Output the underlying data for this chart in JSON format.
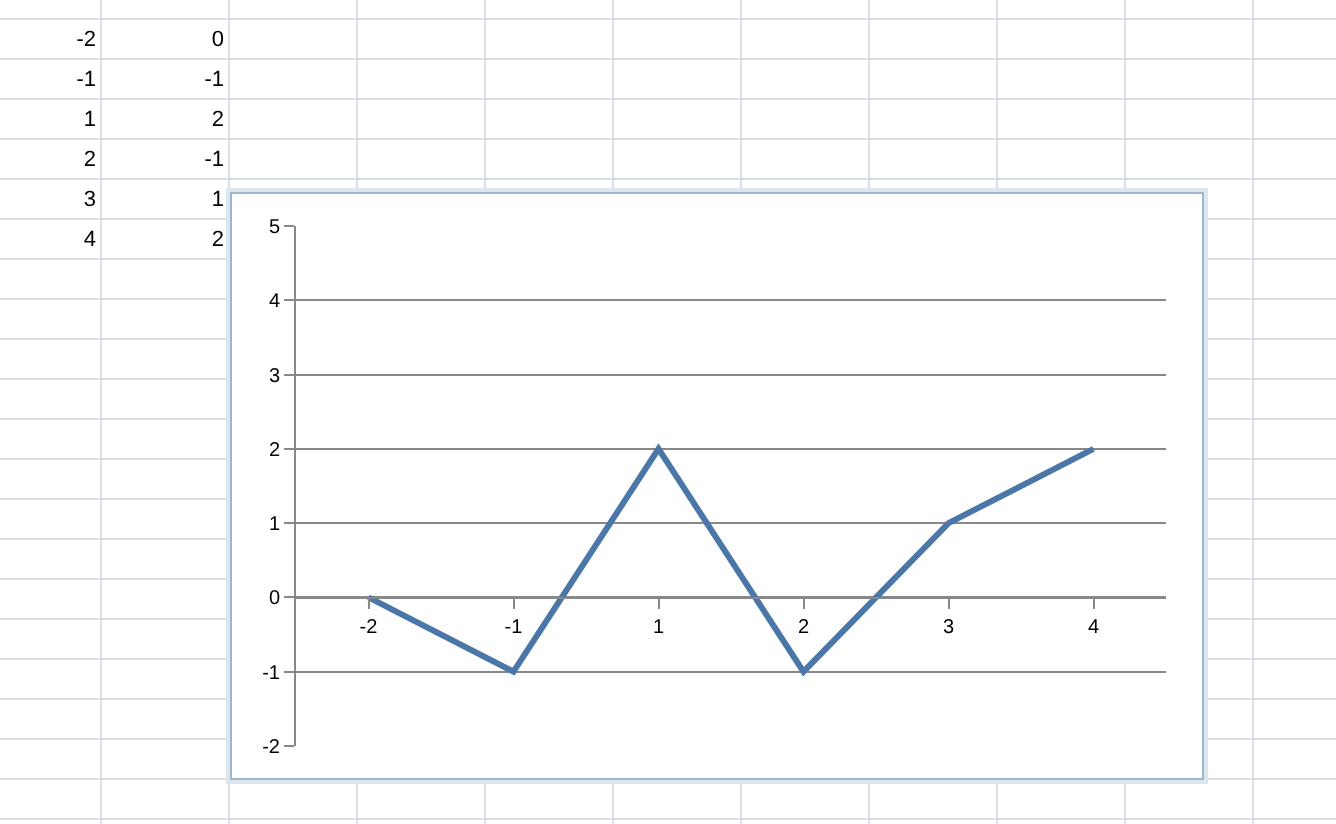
{
  "chart_data": {
    "type": "line",
    "categories": [
      "-2",
      "-1",
      "1",
      "2",
      "3",
      "4"
    ],
    "series": [
      {
        "color": "#4a76a8",
        "values": [
          0,
          -1,
          2,
          -1,
          1,
          2
        ]
      }
    ],
    "ylim": [
      -2,
      5
    ],
    "yticks": [
      -2,
      -1,
      0,
      1,
      2,
      3,
      4,
      5
    ],
    "grid": "y",
    "legend": false,
    "marker": "none",
    "line_style": "solid",
    "annotations": [
      "-2",
      "0",
      "-1",
      "-1",
      "1",
      "2",
      "2",
      "-1",
      "3",
      "1",
      "4",
      "2"
    ]
  }
}
